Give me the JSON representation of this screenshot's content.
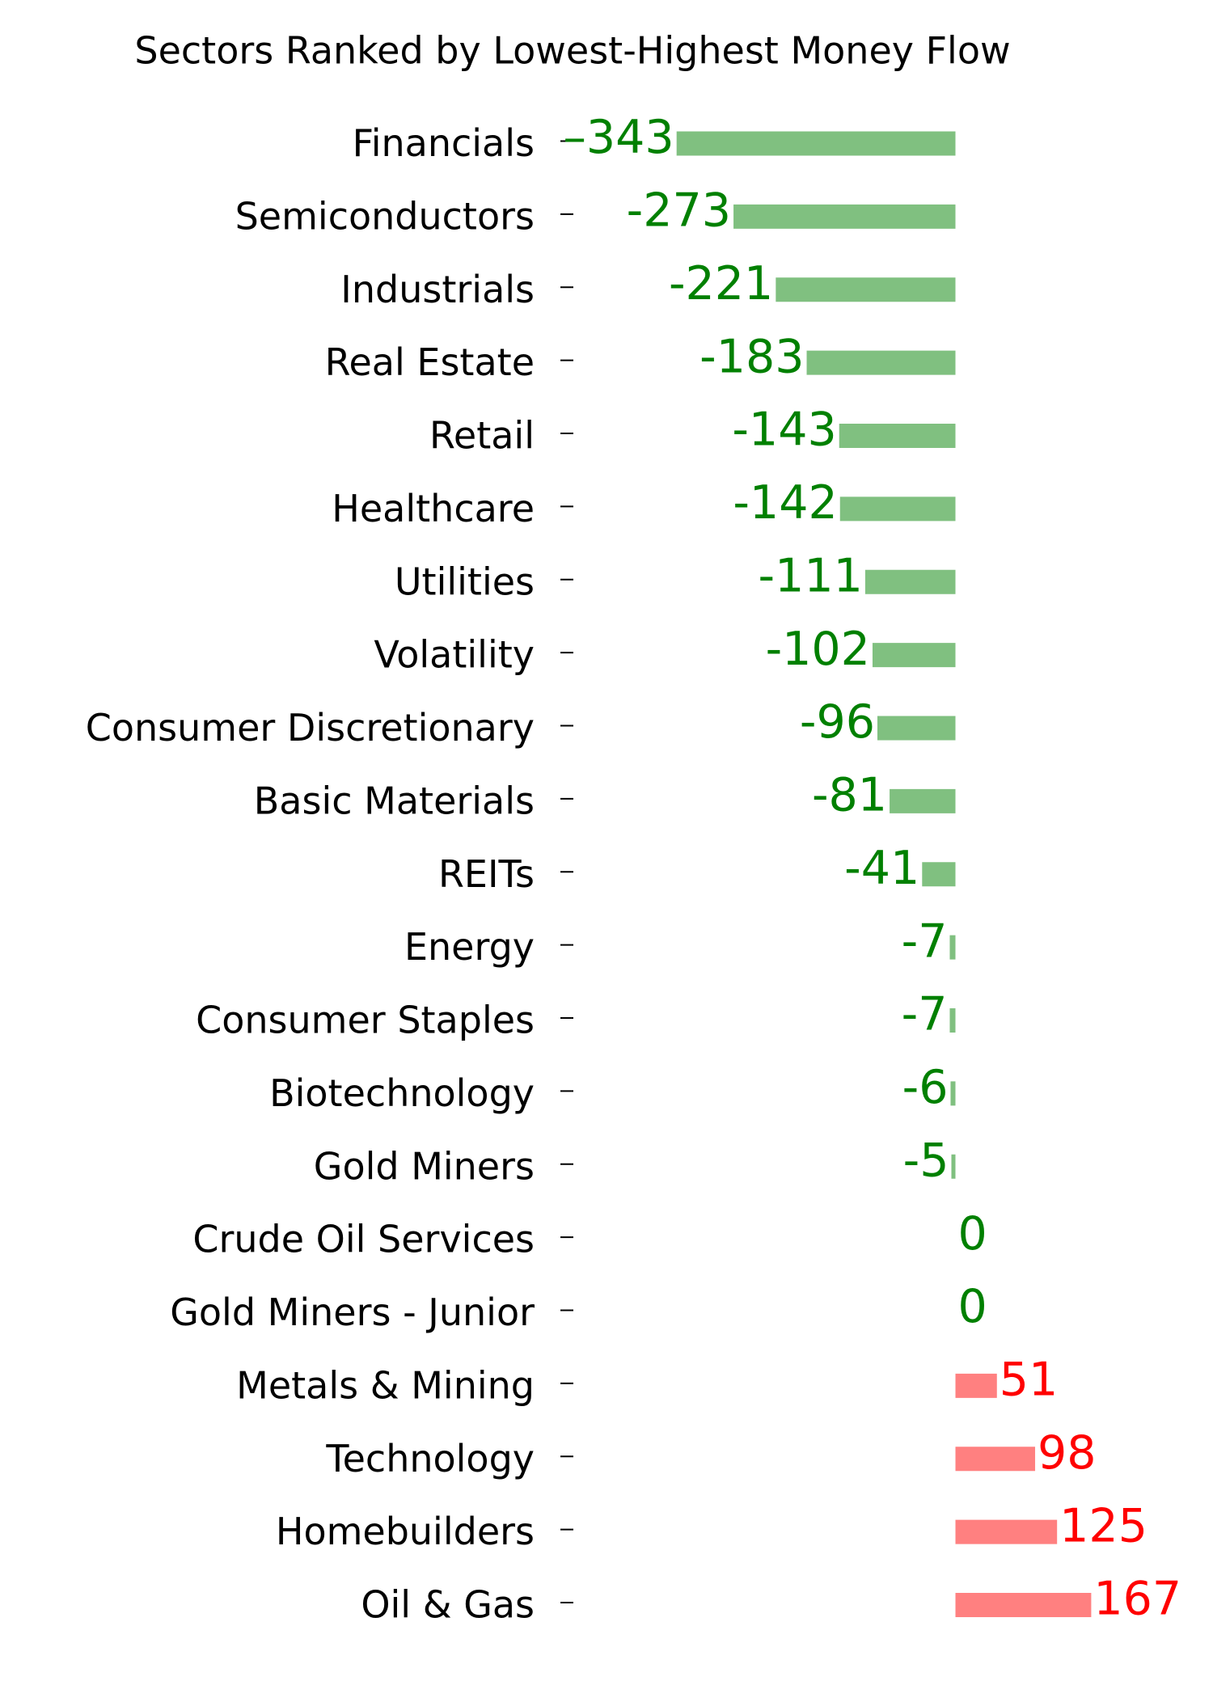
{
  "chart_data": {
    "type": "hbar",
    "title": "Sectors Ranked by Lowest-Highest Money Flow",
    "categories": [
      "Financials",
      "Semiconductors",
      "Industrials",
      "Real Estate",
      "Retail",
      "Healthcare",
      "Utilities",
      "Volatility",
      "Consumer Discretionary",
      "Basic Materials",
      "REITs",
      "Energy",
      "Consumer Staples",
      "Biotechnology",
      "Gold Miners",
      "Crude Oil Services",
      "Gold Miners - Junior",
      "Metals & Mining",
      "Technology",
      "Homebuilders",
      "Oil & Gas"
    ],
    "values": [
      -343,
      -273,
      -221,
      -183,
      -143,
      -142,
      -111,
      -102,
      -96,
      -81,
      -41,
      -7,
      -7,
      -6,
      -5,
      0,
      0,
      51,
      98,
      125,
      167
    ],
    "value_labels": [
      "–343",
      "-273",
      "-221",
      "-183",
      "-143",
      "-142",
      "-111",
      "-102",
      "-96",
      "-81",
      "-41",
      "-7",
      "-7",
      "-6",
      "-5",
      "0",
      "0",
      "51",
      "98",
      "125",
      "167"
    ],
    "xlim": [
      -470,
      280
    ],
    "negative_color": "#80c080",
    "positive_color": "#ff8080",
    "negative_label_color": "#008000",
    "positive_label_color": "#ff0000"
  }
}
